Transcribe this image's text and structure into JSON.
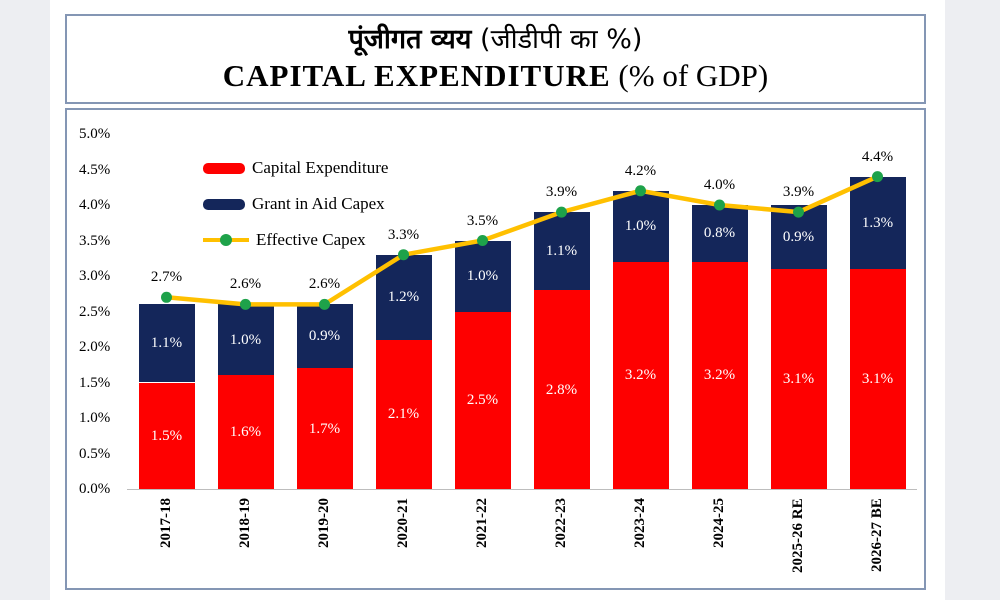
{
  "title": {
    "hindi_bold": "पूंजीगत व्यय",
    "hindi_paren": " (जीडीपी का %)",
    "english_bold": "CAPITAL EXPENDITURE",
    "english_paren": "  (% of GDP)"
  },
  "chart_data": {
    "type": "bar",
    "subtype": "stacked-bars-with-line-overlay",
    "title": "CAPITAL EXPENDITURE (% of GDP)",
    "title_hindi": "पूंजीगत व्यय (जीडीपी का %)",
    "categories": [
      "2017-18",
      "2018-19",
      "2019-20",
      "2020-21",
      "2021-22",
      "2022-23",
      "2023-24",
      "2024-25",
      "2025-26 RE",
      "2026-27 BE"
    ],
    "series": [
      {
        "name": "Capital Expenditure",
        "type": "bar",
        "color": "#fe0000",
        "values": [
          1.5,
          1.6,
          1.7,
          2.1,
          2.5,
          2.8,
          3.2,
          3.2,
          3.1,
          3.1
        ]
      },
      {
        "name": "Grant in Aid Capex",
        "type": "bar",
        "color": "#14265a",
        "values": [
          1.1,
          1.0,
          0.9,
          1.2,
          1.0,
          1.1,
          1.0,
          0.8,
          0.9,
          1.3
        ]
      },
      {
        "name": "Effective Capex",
        "type": "line",
        "color": "#ffc000",
        "marker_color": "#1ea24a",
        "values": [
          2.7,
          2.6,
          2.6,
          3.3,
          3.5,
          3.9,
          4.2,
          4.0,
          3.9,
          4.4
        ]
      }
    ],
    "ylim": [
      0,
      5
    ],
    "ytick_labels": [
      "0.0%",
      "0.5%",
      "1.0%",
      "1.5%",
      "2.0%",
      "2.5%",
      "3.0%",
      "3.5%",
      "4.0%",
      "4.5%",
      "5.0%"
    ],
    "value_suffix": "%",
    "grid": false,
    "legend_position": "top-left-inside",
    "xlabel": "",
    "ylabel": ""
  }
}
